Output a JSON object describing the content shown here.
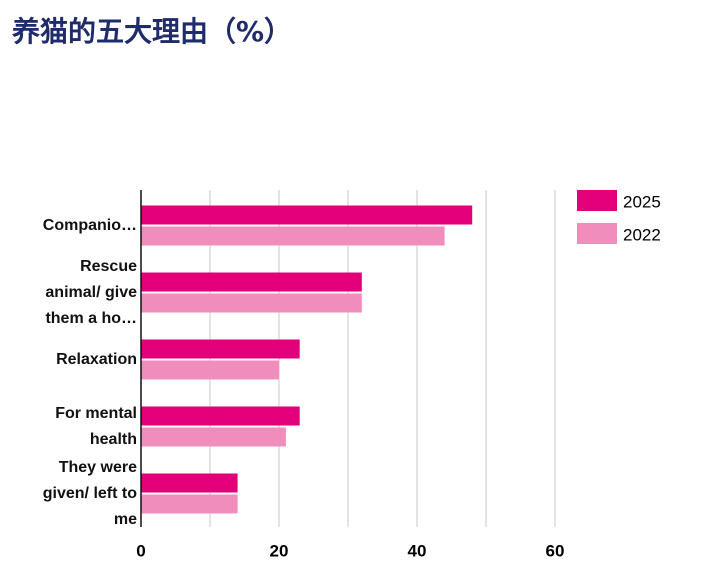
{
  "chart_data": {
    "type": "bar",
    "orientation": "horizontal",
    "title": "养猫的五大理由（%）",
    "categories": [
      "Companio…",
      "Rescue animal/ give them a ho…",
      "Relaxation",
      "For mental health",
      "They were given/ left to me"
    ],
    "series": [
      {
        "name": "2025",
        "color": "#e2007a",
        "values": [
          48,
          32,
          23,
          23,
          14
        ]
      },
      {
        "name": "2022",
        "color": "#f08dbd",
        "values": [
          44,
          32,
          20,
          21,
          14
        ]
      }
    ],
    "xlim": [
      0,
      60
    ],
    "xticks": [
      0,
      20,
      40,
      60
    ],
    "xgrid": [
      0,
      10,
      20,
      30,
      40,
      50,
      60
    ],
    "grid": true,
    "legend": "top-right"
  }
}
